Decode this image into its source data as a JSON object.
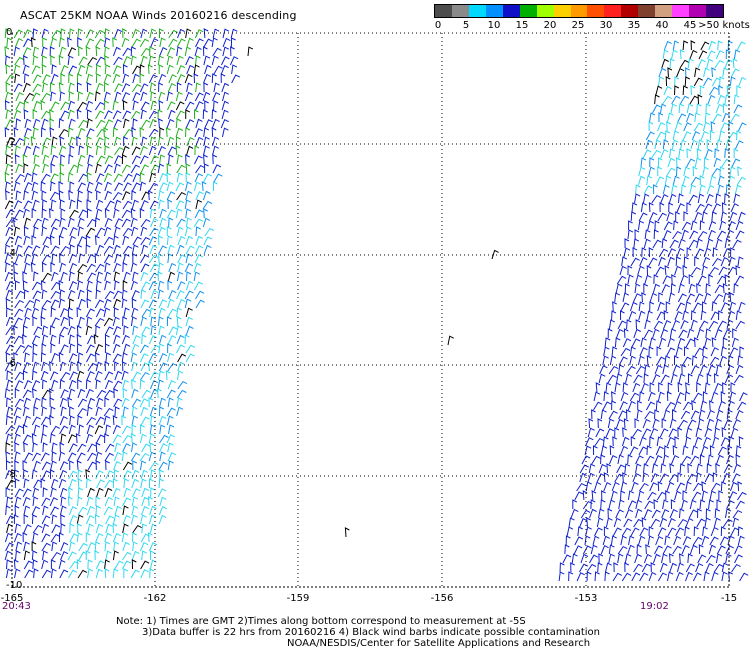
{
  "title": "ASCAT 25KM NOAA Winds 20160216 descending",
  "legend": {
    "colors": [
      "#4d4d4d",
      "#8a8a8a",
      "#00d8ff",
      "#0090ff",
      "#1010c8",
      "#00b000",
      "#a0ff00",
      "#ffd000",
      "#ff9a00",
      "#ff5000",
      "#ff2020",
      "#b00000",
      "#804030",
      "#d0a080",
      "#ff40ff",
      "#b000b0",
      "#400080"
    ],
    "labels": [
      "0",
      "5",
      "10",
      "15",
      "20",
      "25",
      "30",
      "35",
      "40",
      "45",
      ">50 knots"
    ]
  },
  "map": {
    "lon_ticks": [
      "-165",
      "-162",
      "-159",
      "-156",
      "-153",
      "-15"
    ],
    "lat_ticks": [
      "0",
      "-2",
      "-4",
      "-6",
      "-8",
      "-10"
    ],
    "time_left": "20:43",
    "time_right": "19:02"
  },
  "notes": {
    "line1": "Note: 1) Times are GMT 2)Times along bottom correspond to measurement at -5S",
    "line2": "3)Data buffer is 22 hrs from 20160216 4) Black wind barbs indicate possible contamination",
    "line3": "NOAA/NESDIS/Center for Satellite Applications and Research"
  }
}
